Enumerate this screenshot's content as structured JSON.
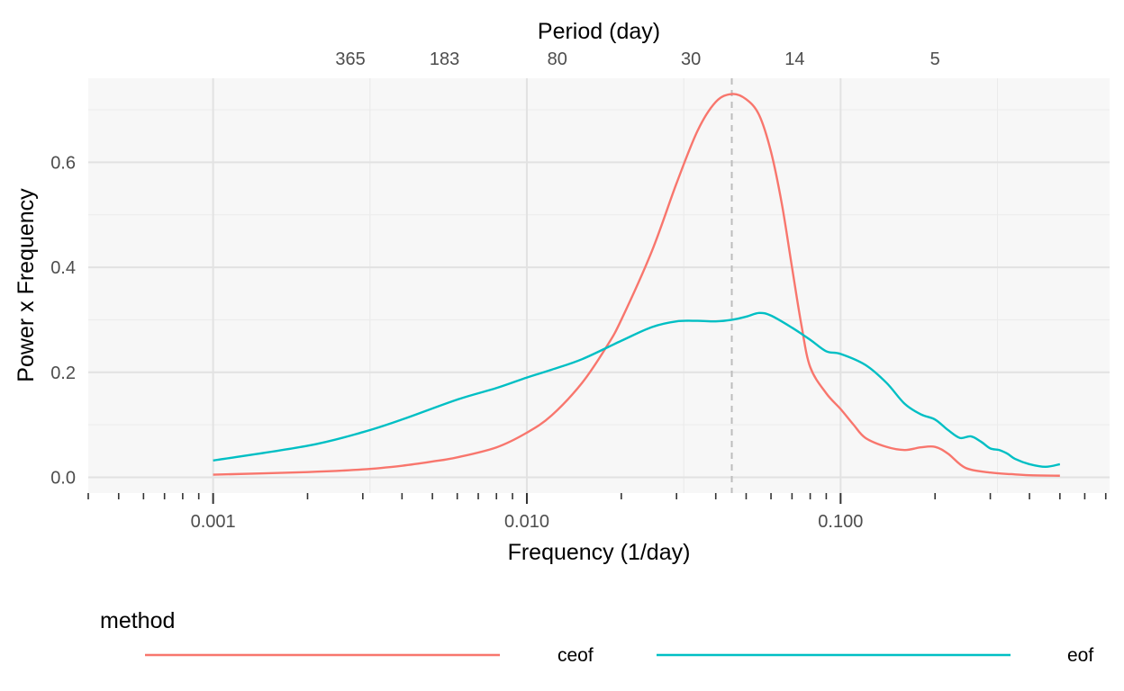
{
  "chart_data": {
    "type": "line",
    "title": "",
    "xlabel": "Frequency (1/day)",
    "ylabel": "Power x Frequency",
    "secondary_xlabel": "Period (day)",
    "x_scale": "log10",
    "xlim": [
      0.0004,
      0.72
    ],
    "ylim": [
      -0.03,
      0.76
    ],
    "x_ticks": [
      0.001,
      0.01,
      0.1
    ],
    "x_tick_labels": [
      "0.001",
      "0.010",
      "0.100"
    ],
    "y_ticks": [
      0.0,
      0.2,
      0.4,
      0.6
    ],
    "y_tick_labels": [
      "0.0",
      "0.2",
      "0.4",
      "0.6"
    ],
    "secondary_x_ticks": [
      365,
      183,
      80,
      30,
      14,
      5
    ],
    "secondary_x_tick_labels": [
      "365",
      "183",
      "80",
      "30",
      "14",
      "5"
    ],
    "vline": {
      "x": 0.045,
      "style": "dashed",
      "color": "#bdbdbd"
    },
    "grid": true,
    "panel_background": "#f7f7f7",
    "legend": {
      "title": "method",
      "position": "bottom"
    },
    "series": [
      {
        "name": "ceof",
        "color": "#F8766D",
        "x": [
          0.001,
          0.002,
          0.003,
          0.004,
          0.005,
          0.006,
          0.008,
          0.01,
          0.012,
          0.015,
          0.018,
          0.02,
          0.025,
          0.03,
          0.035,
          0.04,
          0.045,
          0.05,
          0.055,
          0.06,
          0.065,
          0.07,
          0.075,
          0.08,
          0.09,
          0.1,
          0.11,
          0.12,
          0.14,
          0.16,
          0.18,
          0.2,
          0.22,
          0.25,
          0.3,
          0.35,
          0.4,
          0.5
        ],
        "values": [
          0.005,
          0.01,
          0.015,
          0.022,
          0.03,
          0.038,
          0.057,
          0.085,
          0.118,
          0.18,
          0.25,
          0.3,
          0.43,
          0.56,
          0.66,
          0.715,
          0.73,
          0.72,
          0.69,
          0.62,
          0.52,
          0.4,
          0.29,
          0.21,
          0.16,
          0.13,
          0.1,
          0.075,
          0.058,
          0.052,
          0.057,
          0.058,
          0.045,
          0.018,
          0.009,
          0.006,
          0.004,
          0.003
        ]
      },
      {
        "name": "eof",
        "color": "#00BFC4",
        "x": [
          0.001,
          0.002,
          0.003,
          0.004,
          0.006,
          0.008,
          0.01,
          0.012,
          0.015,
          0.02,
          0.025,
          0.03,
          0.035,
          0.04,
          0.045,
          0.05,
          0.055,
          0.06,
          0.07,
          0.08,
          0.09,
          0.1,
          0.12,
          0.14,
          0.16,
          0.18,
          0.2,
          0.22,
          0.24,
          0.26,
          0.28,
          0.3,
          0.32,
          0.34,
          0.36,
          0.4,
          0.45,
          0.5
        ],
        "values": [
          0.032,
          0.06,
          0.086,
          0.11,
          0.148,
          0.17,
          0.19,
          0.205,
          0.225,
          0.26,
          0.286,
          0.297,
          0.298,
          0.297,
          0.3,
          0.306,
          0.313,
          0.308,
          0.285,
          0.262,
          0.24,
          0.235,
          0.214,
          0.18,
          0.14,
          0.12,
          0.11,
          0.09,
          0.075,
          0.078,
          0.068,
          0.055,
          0.052,
          0.045,
          0.035,
          0.025,
          0.02,
          0.025
        ]
      }
    ]
  }
}
